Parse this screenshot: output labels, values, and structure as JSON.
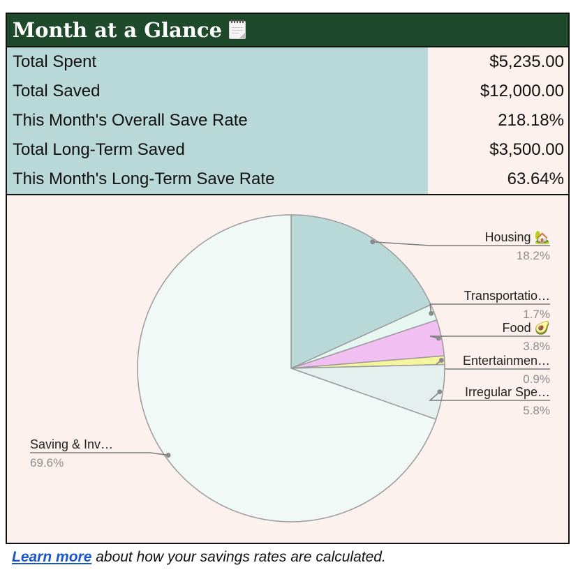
{
  "header": {
    "title": "Month at a Glance",
    "icon": "spiral-notepad-icon"
  },
  "stats": [
    {
      "label": "Total Spent",
      "value": "$5,235.00"
    },
    {
      "label": "Total Saved",
      "value": "$12,000.00"
    },
    {
      "label": "This Month's Overall Save Rate",
      "value": "218.18%"
    },
    {
      "label": "Total Long-Term Saved",
      "value": "$3,500.00"
    },
    {
      "label": "This Month's Long-Term Save Rate",
      "value": "63.64%"
    }
  ],
  "chart_data": {
    "type": "pie",
    "slices": [
      {
        "label": "Housing 🏡",
        "percent": 18.2,
        "percent_label": "18.2%",
        "color": "#b9d8d8"
      },
      {
        "label": "Transportatio…",
        "percent": 1.7,
        "percent_label": "1.7%",
        "color": "#e6f6f1"
      },
      {
        "label": "Food 🥑",
        "percent": 3.8,
        "percent_label": "3.8%",
        "color": "#f2bff2"
      },
      {
        "label": "Entertainmen…",
        "percent": 0.9,
        "percent_label": "0.9%",
        "color": "#f4f59c"
      },
      {
        "label": "Irregular Spe…",
        "percent": 5.8,
        "percent_label": "5.8%",
        "color": "#e4efee"
      },
      {
        "label": "Saving & Inv…",
        "percent": 69.6,
        "percent_label": "69.6%",
        "color": "#f1f9f6"
      }
    ]
  },
  "footer": {
    "link_text": "Learn more",
    "text": " about how your savings rates are calculated."
  }
}
